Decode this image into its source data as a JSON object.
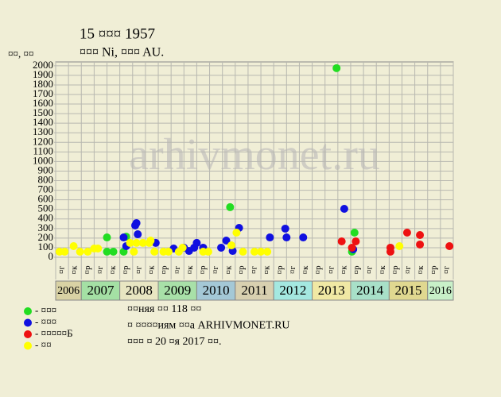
{
  "chart_data": {
    "type": "scatter",
    "title": "15 ¤¤¤ 1957",
    "subtitle": "¤¤¤ Ni, ¤¤¤ AU.",
    "y_label": "¤¤, ¤¤",
    "watermark": "arhivmonet.ru",
    "notes": [
      "¤¤няя ¤¤ 118 ¤¤",
      "¤ ¤¤¤¤иям ¤¤а ARHIVMONET.RU",
      "¤¤¤ ¤ 20 ¤я 2017 ¤¤."
    ],
    "xlim": [
      0,
      31
    ],
    "ylim": [
      0,
      2040
    ],
    "yticks": [
      0,
      100,
      200,
      300,
      400,
      500,
      600,
      700,
      800,
      900,
      1000,
      1100,
      1200,
      1300,
      1400,
      1500,
      1600,
      1700,
      1800,
      1900,
      2000
    ],
    "grid": true,
    "columns": [
      "¤г",
      "¤к",
      "¤р",
      "¤г",
      "¤к",
      "¤р",
      "¤г",
      "¤к",
      "¤р",
      "¤г",
      "¤к",
      "¤р",
      "¤г",
      "¤к",
      "¤р",
      "¤г",
      "¤к",
      "¤р",
      "¤г",
      "¤к",
      "¤р",
      "¤г",
      "¤к",
      "¤р",
      "¤г",
      "¤к",
      "¤р",
      "¤г",
      "¤к",
      "¤р",
      "¤г"
    ],
    "years": [
      {
        "label": "2006",
        "start": 0,
        "end": 2,
        "color": "#d9d2a4"
      },
      {
        "label": "2007",
        "start": 2,
        "end": 5,
        "color": "#a4e0a4"
      },
      {
        "label": "2008",
        "start": 5,
        "end": 8,
        "color": "#e8e6c2"
      },
      {
        "label": "2009",
        "start": 8,
        "end": 11,
        "color": "#a8e0a8"
      },
      {
        "label": "2010",
        "start": 11,
        "end": 14,
        "color": "#a4c8d6"
      },
      {
        "label": "2011",
        "start": 14,
        "end": 17,
        "color": "#d8d0b0"
      },
      {
        "label": "2012",
        "start": 17,
        "end": 20,
        "color": "#a4e8e0"
      },
      {
        "label": "2013",
        "start": 20,
        "end": 23,
        "color": "#f0e8a4"
      },
      {
        "label": "2014",
        "start": 23,
        "end": 26,
        "color": "#a8e0c8"
      },
      {
        "label": "2015",
        "start": 26,
        "end": 29,
        "color": "#e0d890"
      },
      {
        "label": "2016",
        "start": 29,
        "end": 31,
        "color": "#c8f0c8"
      }
    ],
    "series": [
      {
        "name": "- ¤¤¤",
        "color": "#22dd22",
        "x": [
          4.0,
          4.0,
          4.5,
          5.3,
          5.5,
          13.6,
          21.9,
          23.1,
          23.3
        ],
        "values": [
          207,
          58,
          58,
          58,
          215,
          523,
          1975,
          58,
          257
        ]
      },
      {
        "name": "- ¤¤¤",
        "color": "#1010e0",
        "x": [
          5.3,
          5.5,
          6.2,
          6.3,
          6.4,
          7.8,
          9.2,
          10.0,
          10.4,
          10.8,
          11.0,
          11.5,
          12.9,
          13.3,
          13.8,
          14.3,
          16.7,
          17.9,
          18.0,
          19.3,
          22.5,
          23.2
        ],
        "values": [
          207,
          116,
          332,
          357,
          240,
          150,
          91,
          100,
          66,
          100,
          150,
          100,
          100,
          174,
          66,
          307,
          207,
          299,
          207,
          207,
          506,
          83
        ]
      },
      {
        "name": "- ¤¤¤¤¤Б",
        "color": "#ee1111",
        "x": [
          22.3,
          23.1,
          23.4,
          26.1,
          26.1,
          27.4,
          28.4,
          28.4,
          30.7
        ],
        "values": [
          166,
          100,
          166,
          100,
          58,
          257,
          232,
          133,
          116
        ]
      },
      {
        "name": "- ¤¤",
        "color": "#ffff00",
        "x": [
          0.3,
          0.7,
          1.4,
          1.9,
          2.5,
          3.0,
          3.3,
          5.8,
          6.1,
          6.3,
          6.8,
          7.3,
          7.4,
          7.7,
          8.4,
          8.8,
          9.6,
          9.9,
          11.5,
          11.9,
          13.7,
          14.1,
          14.6,
          15.5,
          16.0,
          16.5,
          26.8
        ],
        "values": [
          58,
          58,
          116,
          58,
          58,
          91,
          91,
          150,
          58,
          150,
          150,
          150,
          174,
          58,
          58,
          58,
          58,
          100,
          58,
          58,
          124,
          257,
          58,
          58,
          58,
          58,
          116
        ]
      }
    ]
  }
}
